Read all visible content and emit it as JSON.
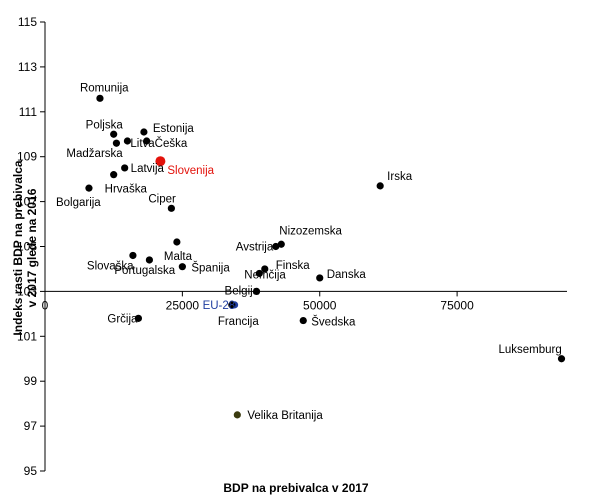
{
  "chart_data": {
    "type": "scatter",
    "title": "",
    "xlabel": "BDP na prebivalca v 2017",
    "ylabel": [
      "Indeks rasti BDP na prebivalca",
      "v 2017 glede na 2016"
    ],
    "xlim": [
      0,
      95000
    ],
    "ylim": [
      95,
      115
    ],
    "x_ticks": [
      {
        "value": 0,
        "label": "0"
      },
      {
        "value": 25000,
        "label": "25000"
      },
      {
        "value": 50000,
        "label": "50000"
      },
      {
        "value": 75000,
        "label": "75000"
      }
    ],
    "y_ticks": [
      {
        "value": 95,
        "label": "95"
      },
      {
        "value": 97,
        "label": "97"
      },
      {
        "value": 99,
        "label": "99"
      },
      {
        "value": 101,
        "label": "101"
      },
      {
        "value": 103,
        "label": "103"
      },
      {
        "value": 105,
        "label": "105"
      },
      {
        "value": 107,
        "label": "107"
      },
      {
        "value": 109,
        "label": "109"
      },
      {
        "value": 111,
        "label": "111"
      },
      {
        "value": 113,
        "label": "113"
      },
      {
        "value": 115,
        "label": "115"
      }
    ],
    "x_axis_crosses_at": 103,
    "grid": false,
    "colors": {
      "default": "#000000",
      "Slovenija": "#e3120b",
      "EU-28": "#1f3da0",
      "Velika Britanija": "#3b3b10"
    },
    "points": [
      {
        "name": "Romunija",
        "x": 10000,
        "y": 111.6
      },
      {
        "name": "Poljska",
        "x": 12500,
        "y": 110.0
      },
      {
        "name": "Estonija",
        "x": 18000,
        "y": 110.1
      },
      {
        "name": "Češka",
        "x": 18500,
        "y": 109.7
      },
      {
        "name": "Litva",
        "x": 15000,
        "y": 109.7
      },
      {
        "name": "Madžarska",
        "x": 13000,
        "y": 109.6
      },
      {
        "name": "Slovenija",
        "x": 21000,
        "y": 108.8
      },
      {
        "name": "Latvija",
        "x": 14500,
        "y": 108.5
      },
      {
        "name": "Hrvaška",
        "x": 12500,
        "y": 108.2
      },
      {
        "name": "Bolgarija",
        "x": 8000,
        "y": 107.6
      },
      {
        "name": "Irska",
        "x": 61000,
        "y": 107.7
      },
      {
        "name": "Ciper",
        "x": 23000,
        "y": 106.7
      },
      {
        "name": "Nizozemska",
        "x": 43000,
        "y": 105.1
      },
      {
        "name": "Avstrija",
        "x": 42000,
        "y": 105.0
      },
      {
        "name": "Malta",
        "x": 24000,
        "y": 105.2
      },
      {
        "name": "Slovaška",
        "x": 16000,
        "y": 104.6
      },
      {
        "name": "Portugalska",
        "x": 19000,
        "y": 104.4
      },
      {
        "name": "Španija",
        "x": 25000,
        "y": 104.1
      },
      {
        "name": "Nemčija",
        "x": 39000,
        "y": 103.8
      },
      {
        "name": "Finska",
        "x": 40000,
        "y": 104.0
      },
      {
        "name": "Danska",
        "x": 50000,
        "y": 103.6
      },
      {
        "name": "Belgija",
        "x": 38500,
        "y": 103.0
      },
      {
        "name": "EU-28",
        "x": 34500,
        "y": 102.4
      },
      {
        "name": "Francija",
        "x": 34000,
        "y": 102.4
      },
      {
        "name": "Švedska",
        "x": 47000,
        "y": 101.7
      },
      {
        "name": "Grčija",
        "x": 17000,
        "y": 101.8
      },
      {
        "name": "Luksemburg",
        "x": 94000,
        "y": 100.0
      },
      {
        "name": "Velika Britanija",
        "x": 35000,
        "y": 97.5
      }
    ]
  }
}
